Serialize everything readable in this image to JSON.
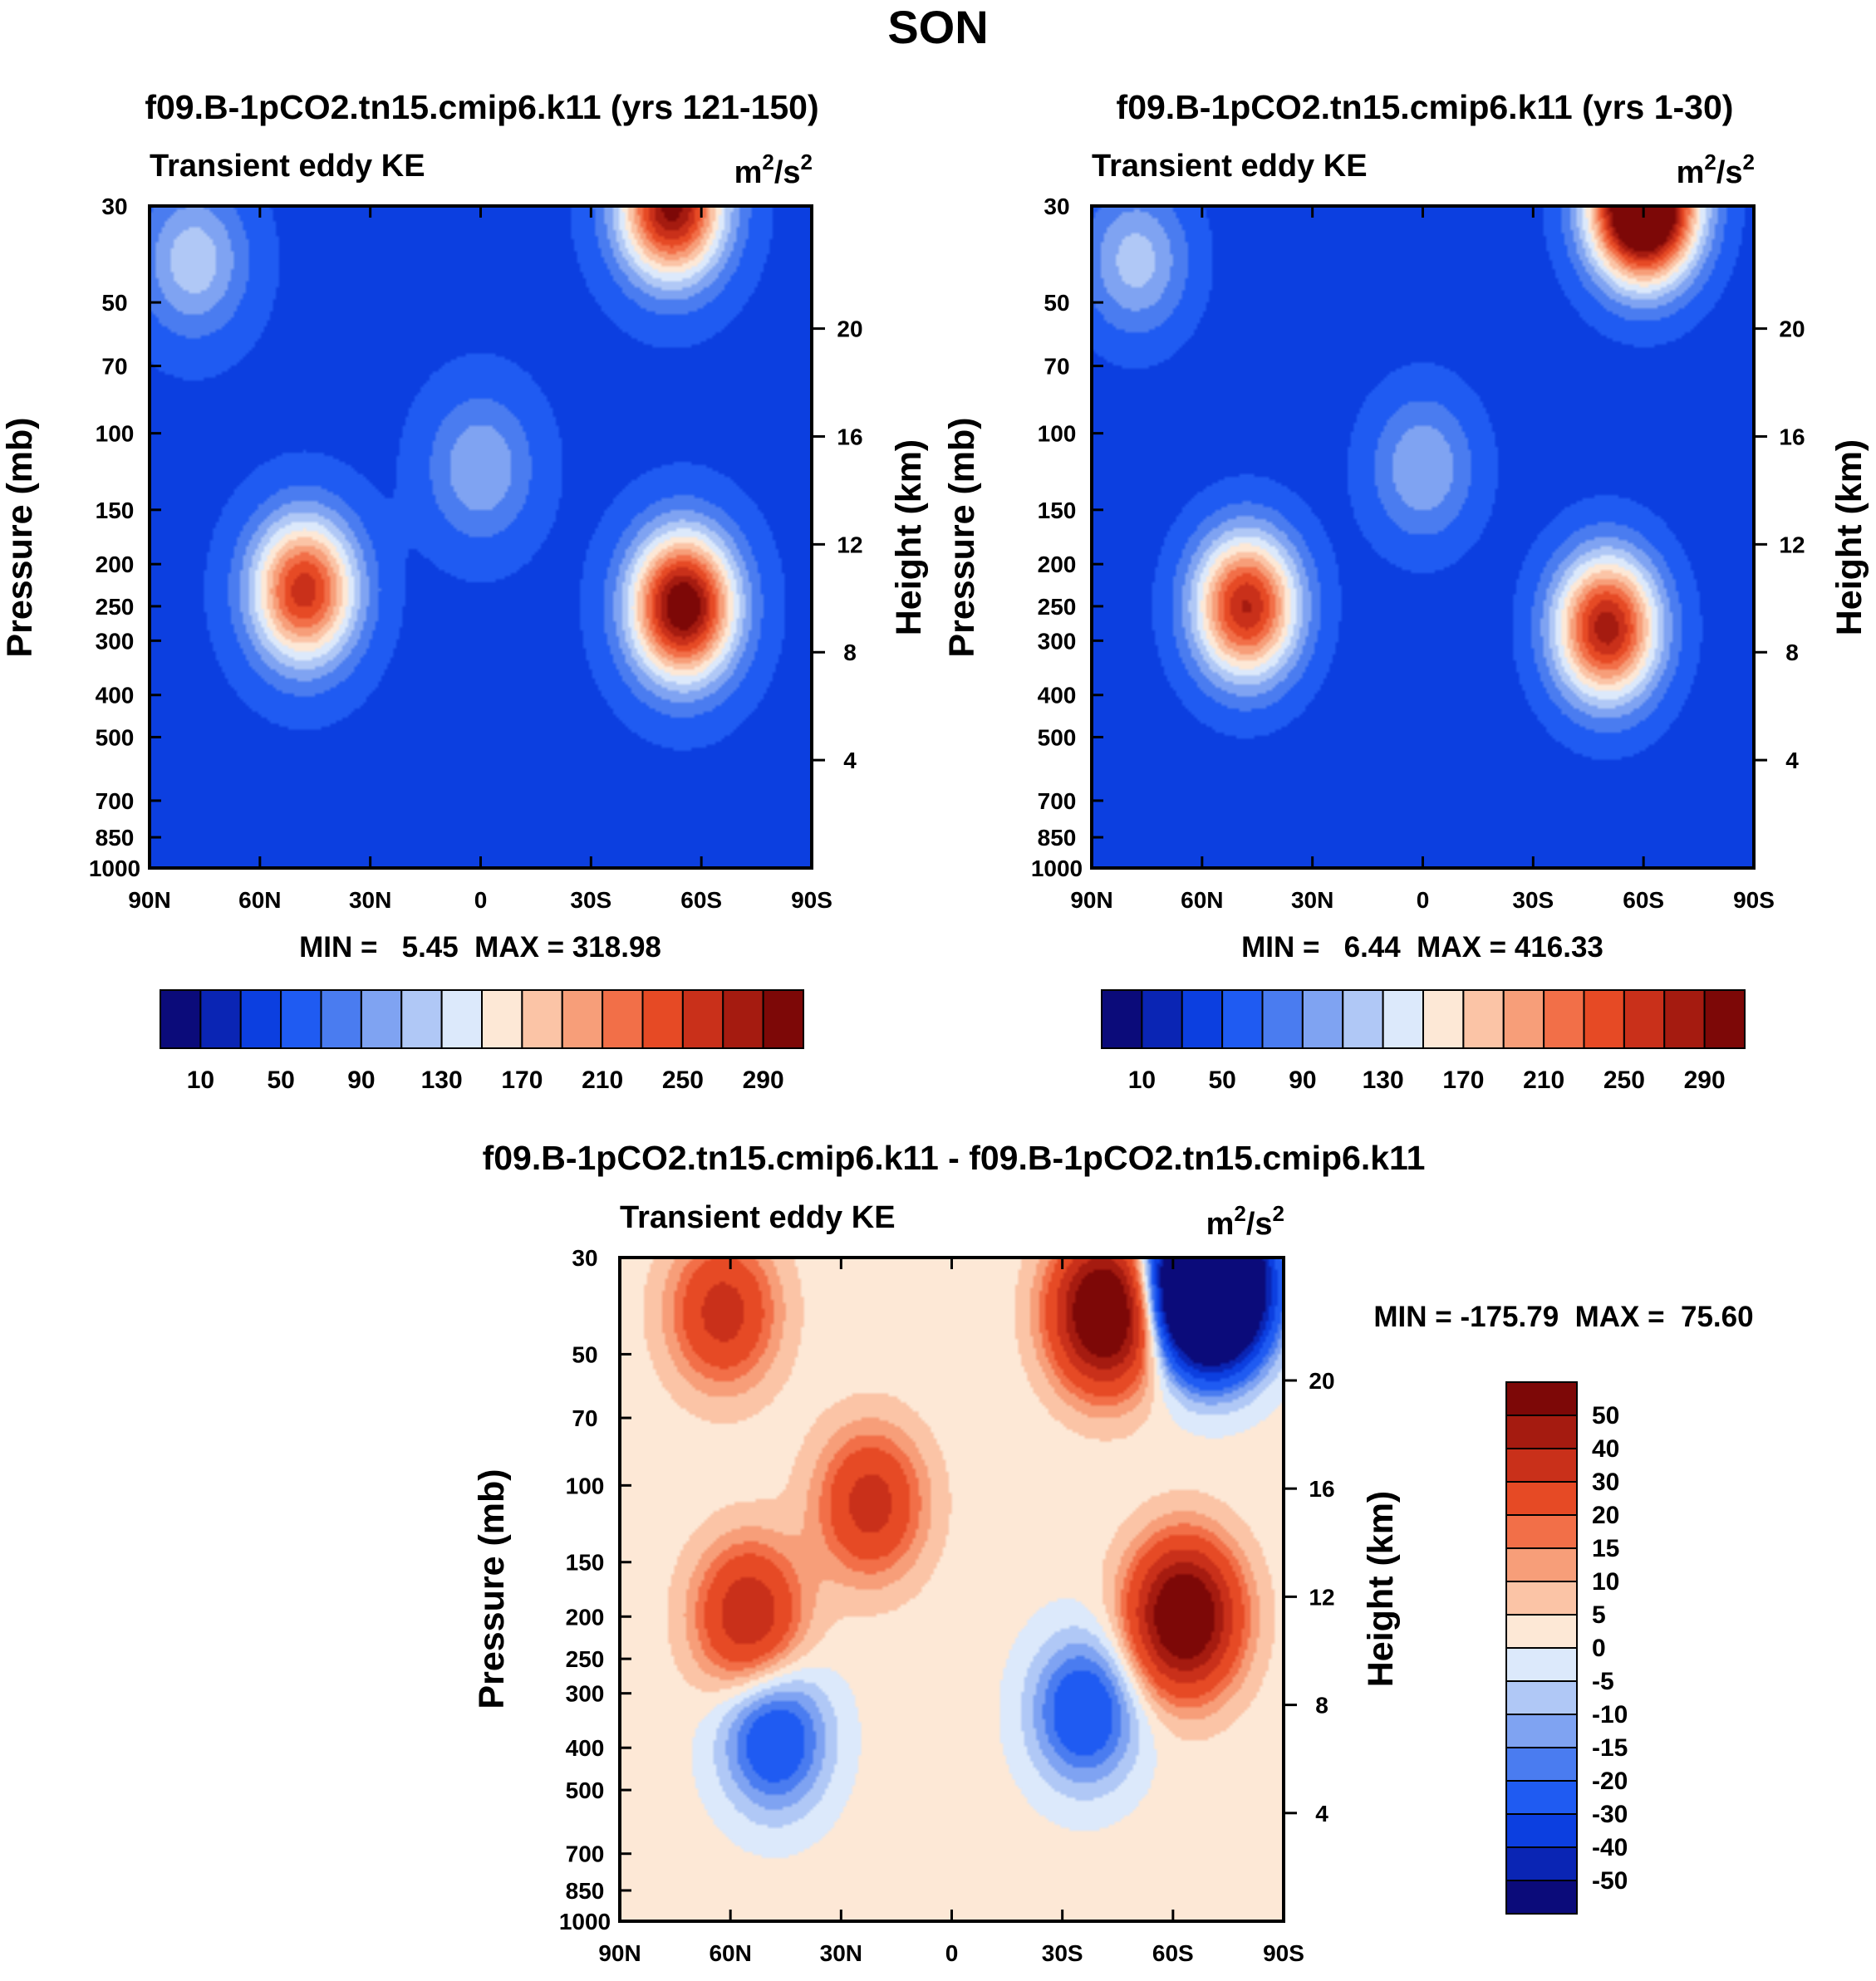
{
  "figure_title": "SON",
  "chart_data": [
    {
      "type": "heatmap",
      "title": "f09.B-1pCO2.tn15.cmip6.k11 (yrs 121-150)",
      "variable": "Transient eddy KE",
      "units_base": "m",
      "units_mid": "/s",
      "units_exp": "2",
      "ylabel": "Pressure (mb)",
      "ylabel_right": "Height (km)",
      "x_ticks": [
        "90N",
        "60N",
        "30N",
        "0",
        "30S",
        "60S",
        "90S"
      ],
      "x_range": [
        90,
        -90
      ],
      "y_ticks": [
        30,
        50,
        70,
        100,
        150,
        200,
        250,
        300,
        400,
        500,
        700,
        850,
        1000
      ],
      "y_range": [
        30,
        1000
      ],
      "height_ticks": [
        20,
        16,
        12,
        8,
        4
      ],
      "stats": "MIN =   5.45  MAX = 318.98",
      "levels": [
        10,
        30,
        50,
        70,
        90,
        110,
        130,
        150,
        170,
        190,
        210,
        230,
        250,
        270,
        290
      ],
      "colorbar_labels": [
        "10",
        "50",
        "90",
        "130",
        "170",
        "210",
        "250",
        "290"
      ],
      "background": 45,
      "features": [
        {
          "name": "NH storm track",
          "lat": 48,
          "p": 230,
          "peak": 262
        },
        {
          "name": "SH storm track",
          "lat": -55,
          "p": 250,
          "peak": 318
        },
        {
          "name": "SH polar night jet",
          "lat": -52,
          "p": 30,
          "peak": 300
        },
        {
          "name": "Equatorial tropopause",
          "lat": 0,
          "p": 120,
          "peak": 110
        },
        {
          "name": "NH stratosphere",
          "lat": 78,
          "p": 40,
          "peak": 125
        }
      ]
    },
    {
      "type": "heatmap",
      "title": "f09.B-1pCO2.tn15.cmip6.k11 (yrs 1-30)",
      "variable": "Transient eddy KE",
      "units_base": "m",
      "units_mid": "/s",
      "units_exp": "2",
      "ylabel": "Pressure (mb)",
      "ylabel_right": "Height (km)",
      "x_ticks": [
        "90N",
        "60N",
        "30N",
        "0",
        "30S",
        "60S",
        "90S"
      ],
      "x_range": [
        90,
        -90
      ],
      "y_ticks": [
        30,
        50,
        70,
        100,
        150,
        200,
        250,
        300,
        400,
        500,
        700,
        850,
        1000
      ],
      "y_range": [
        30,
        1000
      ],
      "height_ticks": [
        20,
        16,
        12,
        8,
        4
      ],
      "stats": "MIN =   6.44  MAX = 416.33",
      "levels": [
        10,
        30,
        50,
        70,
        90,
        110,
        130,
        150,
        170,
        190,
        210,
        230,
        250,
        270,
        290
      ],
      "colorbar_labels": [
        "10",
        "50",
        "90",
        "130",
        "170",
        "210",
        "250",
        "290"
      ],
      "background": 42,
      "features": [
        {
          "name": "NH storm track",
          "lat": 48,
          "p": 250,
          "peak": 272
        },
        {
          "name": "SH storm track",
          "lat": -50,
          "p": 280,
          "peak": 282
        },
        {
          "name": "SH polar night jet",
          "lat": -60,
          "p": 30,
          "peak": 416
        },
        {
          "name": "Equatorial tropopause",
          "lat": 0,
          "p": 120,
          "peak": 110
        },
        {
          "name": "NH stratosphere",
          "lat": 78,
          "p": 40,
          "peak": 120
        }
      ]
    },
    {
      "type": "heatmap",
      "title": "f09.B-1pCO2.tn15.cmip6.k11 - f09.B-1pCO2.tn15.cmip6.k11",
      "variable": "Transient eddy KE",
      "units_base": "m",
      "units_mid": "/s",
      "units_exp": "2",
      "ylabel": "Pressure (mb)",
      "ylabel_right": "Height (km)",
      "x_ticks": [
        "90N",
        "60N",
        "30N",
        "0",
        "30S",
        "60S",
        "90S"
      ],
      "x_range": [
        90,
        -90
      ],
      "y_ticks": [
        30,
        50,
        70,
        100,
        150,
        200,
        250,
        300,
        400,
        500,
        700,
        850,
        1000
      ],
      "y_range": [
        30,
        1000
      ],
      "height_ticks": [
        20,
        16,
        12,
        8,
        4
      ],
      "stats": "MIN = -175.79  MAX =  75.60",
      "levels": [
        -50,
        -40,
        -30,
        -20,
        -15,
        -10,
        -5,
        0,
        5,
        10,
        15,
        20,
        30,
        40,
        50
      ],
      "colorbar_labels": [
        "50",
        "40",
        "30",
        "20",
        "15",
        "10",
        "5",
        "0",
        "-5",
        "-10",
        "-15",
        "-20",
        "-30",
        "-40",
        "-50"
      ],
      "background": 2,
      "features": [
        {
          "name": "NH upper increase",
          "lat": 55,
          "p": 200,
          "peak": 40
        },
        {
          "name": "NH strat increase",
          "lat": 62,
          "p": 40,
          "peak": 35
        },
        {
          "name": "Subtropical increase",
          "lat": 22,
          "p": 110,
          "peak": 35
        },
        {
          "name": "SH upper increase",
          "lat": -63,
          "p": 200,
          "peak": 70
        },
        {
          "name": "SH jet increase",
          "lat": -42,
          "p": 40,
          "peak": 75
        },
        {
          "name": "NH lower decrease",
          "lat": 48,
          "p": 380,
          "peak": -30
        },
        {
          "name": "SH lower decrease",
          "lat": -36,
          "p": 330,
          "peak": -30
        },
        {
          "name": "SH polar strat decrease",
          "lat": -70,
          "p": 35,
          "peak": -175
        }
      ]
    }
  ]
}
